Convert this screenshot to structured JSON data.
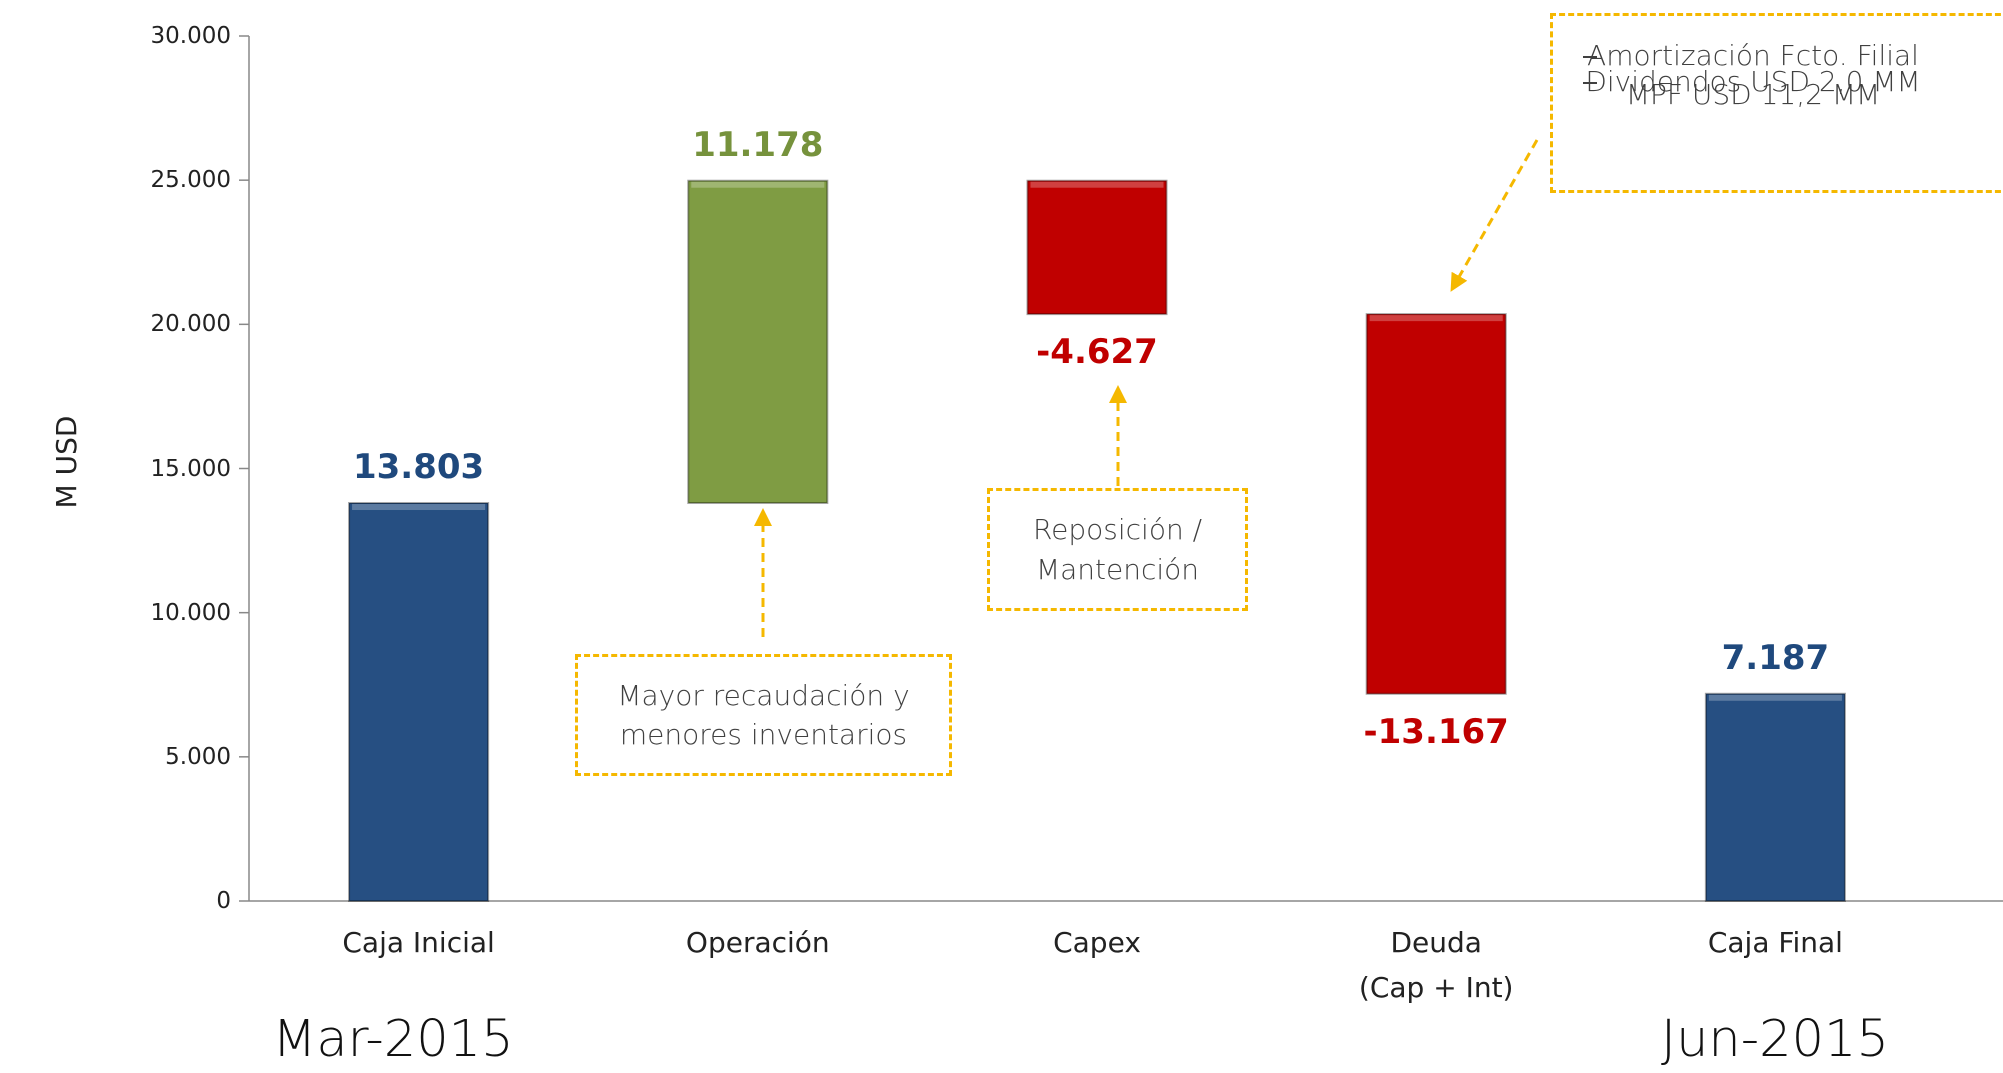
{
  "chart_data": {
    "type": "waterfall",
    "y_label": "M USD",
    "categories": [
      "Caja Inicial",
      "Operación",
      "Capex",
      "Deuda\n(Cap + Int)",
      "Caja Final"
    ],
    "values": [
      13803,
      11178,
      -4627,
      -13167,
      7187
    ],
    "value_labels": [
      "13.803",
      "11.178",
      "-4.627",
      "-13.167",
      "7.187"
    ],
    "colors": [
      "#264f82",
      "#7f9c43",
      "#c00000",
      "#c00000",
      "#264f82"
    ],
    "label_colors": [
      "#1f497d",
      "#76923c",
      "#c00000",
      "#c00000",
      "#1f497d"
    ],
    "ylim": [
      0,
      30000
    ],
    "yticks": [
      0,
      {
        "value": 5000,
        "label": "5.000"
      },
      {
        "value": 10000,
        "label": "10.000"
      },
      {
        "value": 15000,
        "label": "15.000"
      },
      {
        "value": 20000,
        "label": "20.000"
      },
      {
        "value": 25000,
        "label": "25.000"
      },
      {
        "value": 30000,
        "label": "30.000"
      }
    ],
    "annotations": [
      "Mayor recaudación y\nmenores inventarios",
      "Reposición /\nMantención",
      "Amortización Fcto. Filial MPF USD 11,2 MM",
      "Dividendos USD 2,0 MM"
    ],
    "start_label": "Mar-2015",
    "end_label": "Jun-2015"
  }
}
